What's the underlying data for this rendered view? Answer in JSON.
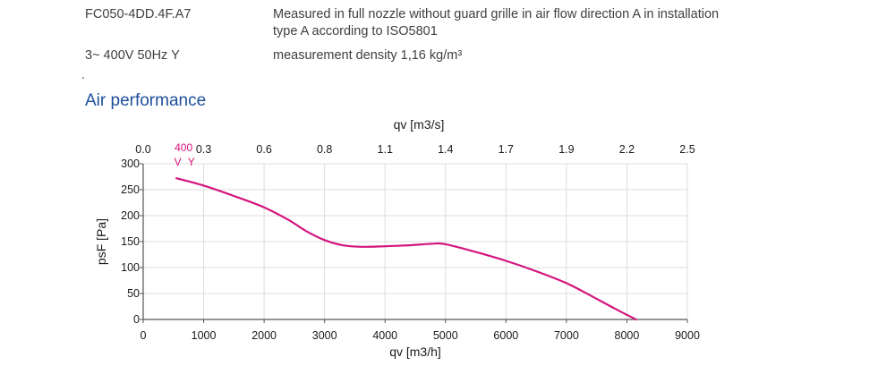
{
  "header": {
    "model": "FC050-4DD.4F.A7",
    "supply": "3~ 400V 50Hz Y",
    "measurement_line1": "Measured in full nozzle without guard grille in air flow direction A in installation",
    "measurement_line2": "type A according to ISO5801",
    "density": "measurement density 1,16 kg/m³"
  },
  "section_title": "Air performance",
  "chart_data": {
    "type": "line",
    "title": "",
    "xlabel": "qv [m3/h]",
    "x2label": "qv [m3/s]",
    "ylabel": "psF [Pa]",
    "xlim": [
      0,
      9000
    ],
    "ylim": [
      0,
      300
    ],
    "xticks": [
      "0",
      "1000",
      "2000",
      "3000",
      "4000",
      "5000",
      "6000",
      "7000",
      "8000",
      "9000"
    ],
    "x2ticks": [
      "0.0",
      "0.3",
      "0.6",
      "0.8",
      "1.1",
      "1.4",
      "1.7",
      "1.9",
      "2.2",
      "2.5"
    ],
    "yticks": [
      "0",
      "50",
      "100",
      "150",
      "200",
      "250",
      "300"
    ],
    "grid": true,
    "series": [
      {
        "name": "400 VY",
        "color": "#d4157e",
        "x": [
          550,
          1000,
          1500,
          2000,
          2400,
          2700,
          3000,
          3300,
          3600,
          4000,
          4400,
          4800,
          5000,
          5500,
          6000,
          6500,
          7000,
          7400,
          7800,
          8150
        ],
        "y": [
          272,
          258,
          238,
          216,
          192,
          170,
          153,
          143,
          140,
          141,
          143,
          146,
          145,
          130,
          113,
          93,
          70,
          46,
          21,
          0
        ]
      }
    ]
  }
}
